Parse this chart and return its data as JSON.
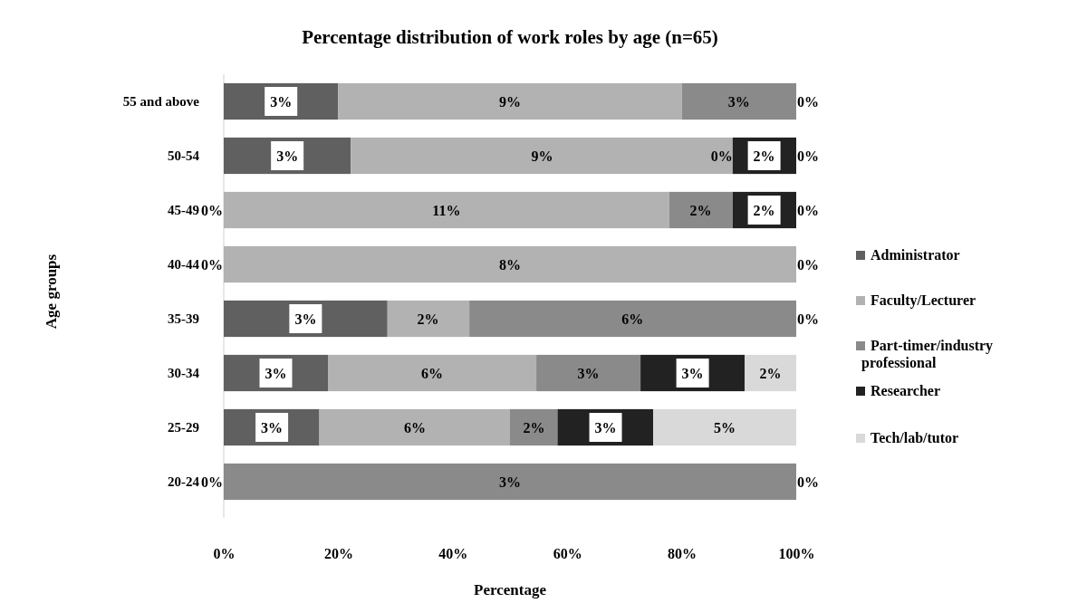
{
  "chart_data": {
    "type": "bar",
    "orientation": "horizontal",
    "stacked": true,
    "title": "Percentage distribution of work roles by age (n=65)",
    "xlabel": "Percentage",
    "ylabel": "Age groups",
    "categories": [
      "55 and above",
      "50-54",
      "45-49",
      "40-44",
      "35-39",
      "30-34",
      "25-29",
      "20-24"
    ],
    "series": [
      {
        "name": "Administrator",
        "color": "#606060",
        "values": [
          20,
          22.2,
          0,
          0,
          28.6,
          18.2,
          16.7,
          0
        ]
      },
      {
        "name": "Faculty/Lecturer",
        "color": "#b2b2b2",
        "values": [
          60,
          66.7,
          77.8,
          100,
          14.3,
          36.4,
          33.3,
          0
        ]
      },
      {
        "name": "Part-timer/industry professional",
        "color": "#8a8a8a",
        "values": [
          20,
          0,
          11.1,
          0,
          57.1,
          18.2,
          8.3,
          100
        ]
      },
      {
        "name": "Researcher",
        "color": "#222222",
        "values": [
          0,
          11.1,
          11.1,
          0,
          0,
          18.2,
          16.7,
          0
        ]
      },
      {
        "name": "Tech/lab/tutor",
        "color": "#d9d9d9",
        "values": [
          0,
          0,
          0,
          0,
          0,
          9,
          25,
          0
        ]
      }
    ],
    "annotations": [
      {
        "text": "3%",
        "x": 10,
        "y": "55 and above"
      },
      {
        "text": "9%",
        "x": 50,
        "y": "55 and above"
      },
      {
        "text": "3%",
        "x": 90,
        "y": "55 and above"
      },
      {
        "text": "0%",
        "x": 100,
        "y": "55 and above"
      },
      {
        "text": "3%",
        "x": 11.1,
        "y": "50-54"
      },
      {
        "text": "9%",
        "x": 55.6,
        "y": "50-54"
      },
      {
        "text": "0%",
        "x": 88.9,
        "y": "50-54"
      },
      {
        "text": "2%",
        "x": 94.4,
        "y": "50-54"
      },
      {
        "text": "0%",
        "x": 100,
        "y": "50-54"
      },
      {
        "text": "0%",
        "x": 0,
        "y": "45-49"
      },
      {
        "text": "11%",
        "x": 38.9,
        "y": "45-49"
      },
      {
        "text": "2%",
        "x": 83.3,
        "y": "45-49"
      },
      {
        "text": "2%",
        "x": 94.4,
        "y": "45-49"
      },
      {
        "text": "0%",
        "x": 100,
        "y": "45-49"
      },
      {
        "text": "0%",
        "x": 0,
        "y": "40-44"
      },
      {
        "text": "8%",
        "x": 50,
        "y": "40-44"
      },
      {
        "text": "0%",
        "x": 100,
        "y": "40-44"
      },
      {
        "text": "3%",
        "x": 14.3,
        "y": "35-39"
      },
      {
        "text": "2%",
        "x": 35.7,
        "y": "35-39"
      },
      {
        "text": "6%",
        "x": 71.4,
        "y": "35-39"
      },
      {
        "text": "0%",
        "x": 100,
        "y": "35-39"
      },
      {
        "text": "3%",
        "x": 9.1,
        "y": "30-34"
      },
      {
        "text": "6%",
        "x": 36.4,
        "y": "30-34"
      },
      {
        "text": "3%",
        "x": 63.7,
        "y": "30-34"
      },
      {
        "text": "3%",
        "x": 81.9,
        "y": "30-34"
      },
      {
        "text": "2%",
        "x": 95.5,
        "y": "30-34"
      },
      {
        "text": "3%",
        "x": 8.4,
        "y": "25-29"
      },
      {
        "text": "6%",
        "x": 33.4,
        "y": "25-29"
      },
      {
        "text": "2%",
        "x": 54.2,
        "y": "25-29"
      },
      {
        "text": "3%",
        "x": 66.7,
        "y": "25-29"
      },
      {
        "text": "5%",
        "x": 87.5,
        "y": "25-29"
      },
      {
        "text": "0%",
        "x": 0,
        "y": "20-24"
      },
      {
        "text": "3%",
        "x": 50,
        "y": "20-24"
      },
      {
        "text": "0%",
        "x": 100,
        "y": "20-24"
      }
    ],
    "xlim": [
      0,
      100
    ],
    "xticks": [
      {
        "value": 0,
        "label": "0%"
      },
      {
        "value": 20,
        "label": "20%"
      },
      {
        "value": 40,
        "label": "40%"
      },
      {
        "value": 60,
        "label": "60%"
      },
      {
        "value": 80,
        "label": "80%"
      },
      {
        "value": 100,
        "label": "100%"
      }
    ],
    "legend": "right"
  }
}
